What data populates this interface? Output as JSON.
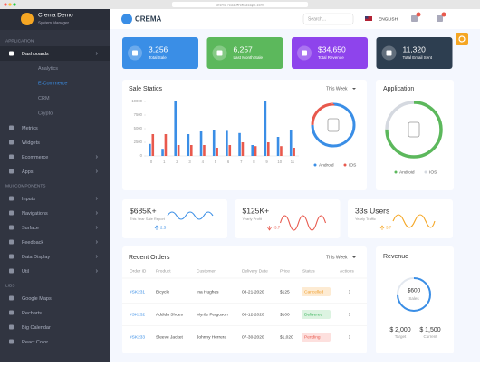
{
  "browser": {
    "url": "crema-react.firebaseapp.com"
  },
  "sidebar": {
    "user": {
      "name": "Crema Demo",
      "role": "System Manager"
    },
    "sections": [
      {
        "heading": "APPLICATION",
        "items": [
          {
            "label": "Dashboards",
            "children": [
              "Analytics",
              "E-Commerce",
              "CRM",
              "Crypto"
            ]
          },
          {
            "label": "Metrics"
          },
          {
            "label": "Widgets"
          },
          {
            "label": "Ecommerce"
          },
          {
            "label": "Apps"
          }
        ]
      },
      {
        "heading": "MUI COMPONENTS",
        "items": [
          {
            "label": "Inputs"
          },
          {
            "label": "Navigations"
          },
          {
            "label": "Surface"
          },
          {
            "label": "Feedback"
          },
          {
            "label": "Data Display"
          },
          {
            "label": "Util"
          }
        ]
      },
      {
        "heading": "LIBS",
        "items": [
          {
            "label": "Google Maps"
          },
          {
            "label": "Recharts"
          },
          {
            "label": "Big Calendar"
          },
          {
            "label": "React Color"
          }
        ]
      }
    ]
  },
  "header": {
    "logo": "CREMA",
    "search": "Search...",
    "language": "ENGLISH"
  },
  "stats": [
    {
      "value": "3,256",
      "label": "Total Sale",
      "color": "#3a8ee6"
    },
    {
      "value": "6,257",
      "label": "Last Month Sale",
      "color": "#5cb85c"
    },
    {
      "value": "$34,650",
      "label": "Total Revenue",
      "color": "#8e44ec"
    },
    {
      "value": "11,320",
      "label": "Total Email Sent",
      "color": "#2d3e50"
    }
  ],
  "sale_statics": {
    "title": "Sale Statics",
    "filter": "This Week",
    "chart": {
      "type": "bar",
      "categories": [
        "0",
        "1",
        "2",
        "3",
        "4",
        "5",
        "6",
        "7",
        "8",
        "9",
        "10",
        "11"
      ],
      "series": [
        {
          "name": "Android",
          "color": "#3a8ee6",
          "values": [
            2200,
            1300,
            10000,
            4000,
            4500,
            4800,
            4600,
            4200,
            2000,
            10000,
            3500,
            4800
          ]
        },
        {
          "name": "IOS",
          "color": "#e8594d",
          "values": [
            4000,
            4000,
            2000,
            2000,
            2000,
            1500,
            2000,
            2500,
            1800,
            2500,
            1800,
            1500
          ]
        }
      ],
      "ylim": [
        0,
        10000
      ],
      "yticks": [
        0,
        2500,
        5000,
        7500,
        10000
      ],
      "grid": false
    },
    "donut": {
      "type": "pie",
      "series": [
        {
          "name": "Android",
          "color": "#3a8ee6",
          "value": 75
        },
        {
          "name": "IOS",
          "color": "#e8594d",
          "value": 25
        }
      ]
    }
  },
  "application": {
    "title": "Application",
    "chart": {
      "type": "pie",
      "series": [
        {
          "name": "Android",
          "color": "#5cb85c",
          "value": 75
        },
        {
          "name": "IOS",
          "color": "#d5d9e0",
          "value": 25
        }
      ]
    }
  },
  "reports": [
    {
      "value": "$685K+",
      "label": "This Year Sale Report",
      "change": "2.5",
      "color": "#3a8ee6"
    },
    {
      "value": "$125K+",
      "label": "Yearly Profit",
      "change": "-3.7",
      "color": "#e8594d"
    },
    {
      "value": "33s Users",
      "label": "Yearly Traffic",
      "change": "3.7",
      "color": "#f5a623"
    }
  ],
  "recent_orders": {
    "title": "Recent Orders",
    "filter": "This Week",
    "columns": [
      "Order ID",
      "Product",
      "Customer",
      "Delivery Date",
      "Price",
      "Status",
      "Actions"
    ],
    "rows": [
      [
        "#SK231",
        "Bicycle",
        "Ina Hughes",
        "08-21-2020",
        "$125",
        "Cancelled"
      ],
      [
        "#SK232",
        "Addida Shoes",
        "Myrtle Ferguson",
        "08-12-2020",
        "$100",
        "Delivered"
      ],
      [
        "#SK233",
        "Sleeve Jacket",
        "Johnny Herrera",
        "07-30-2020",
        "$1,020",
        "Pending"
      ]
    ]
  },
  "revenue": {
    "title": "Revenue",
    "progress": 75,
    "center_value": "$600",
    "center_label": "Sales",
    "target_value": "$ 2,000",
    "target_label": "Target",
    "current_value": "$ 1,500",
    "current_label": "Current"
  }
}
